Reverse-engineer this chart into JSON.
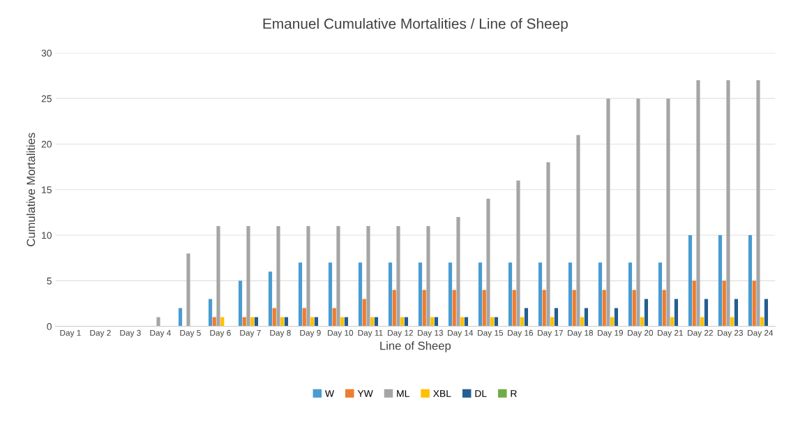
{
  "chart_data": {
    "type": "bar",
    "title": "Emanuel Cumulative Mortalities / Line of Sheep",
    "xlabel": "Line of Sheep",
    "ylabel": "Cumulative Mortalities",
    "categories": [
      "Day 1",
      "Day 2",
      "Day 3",
      "Day 4",
      "Day 5",
      "Day 6",
      "Day 7",
      "Day 8",
      "Day 9",
      "Day 10",
      "Day 11",
      "Day 12",
      "Day 13",
      "Day 14",
      "Day 15",
      "Day 16",
      "Day 17",
      "Day 18",
      "Day 19",
      "Day 20",
      "Day 21",
      "Day 22",
      "Day 23",
      "Day 24"
    ],
    "series": [
      {
        "name": "W",
        "color": "#4a9bd1",
        "values": [
          0,
          0,
          0,
          0,
          2,
          3,
          5,
          6,
          7,
          7,
          7,
          7,
          7,
          7,
          7,
          7,
          7,
          7,
          7,
          7,
          7,
          10,
          10,
          10
        ]
      },
      {
        "name": "YW",
        "color": "#ed7d31",
        "values": [
          0,
          0,
          0,
          0,
          0,
          1,
          1,
          2,
          2,
          2,
          3,
          4,
          4,
          4,
          4,
          4,
          4,
          4,
          4,
          4,
          4,
          5,
          5,
          5
        ]
      },
      {
        "name": "ML",
        "color": "#a5a5a5",
        "values": [
          0,
          0,
          0,
          1,
          8,
          11,
          11,
          11,
          11,
          11,
          11,
          11,
          11,
          12,
          14,
          16,
          18,
          21,
          25,
          25,
          25,
          27,
          27,
          27
        ]
      },
      {
        "name": "XBL",
        "color": "#ffc000",
        "values": [
          0,
          0,
          0,
          0,
          0,
          1,
          1,
          1,
          1,
          1,
          1,
          1,
          1,
          1,
          1,
          1,
          1,
          1,
          1,
          1,
          1,
          1,
          1,
          1
        ]
      },
      {
        "name": "DL",
        "color": "#255e91",
        "values": [
          0,
          0,
          0,
          0,
          0,
          0,
          1,
          1,
          1,
          1,
          1,
          1,
          1,
          1,
          1,
          2,
          2,
          2,
          2,
          3,
          3,
          3,
          3,
          3
        ]
      },
      {
        "name": "R",
        "color": "#70ad47",
        "values": [
          0,
          0,
          0,
          0,
          0,
          0,
          0,
          0,
          0,
          0,
          0,
          0,
          0,
          0,
          0,
          0,
          0,
          0,
          0,
          0,
          0,
          0,
          0,
          0
        ]
      }
    ],
    "ylim": [
      0,
      30
    ],
    "yticks": [
      0,
      5,
      10,
      15,
      20,
      25,
      30
    ],
    "grid": "y",
    "legend": "bottom"
  }
}
